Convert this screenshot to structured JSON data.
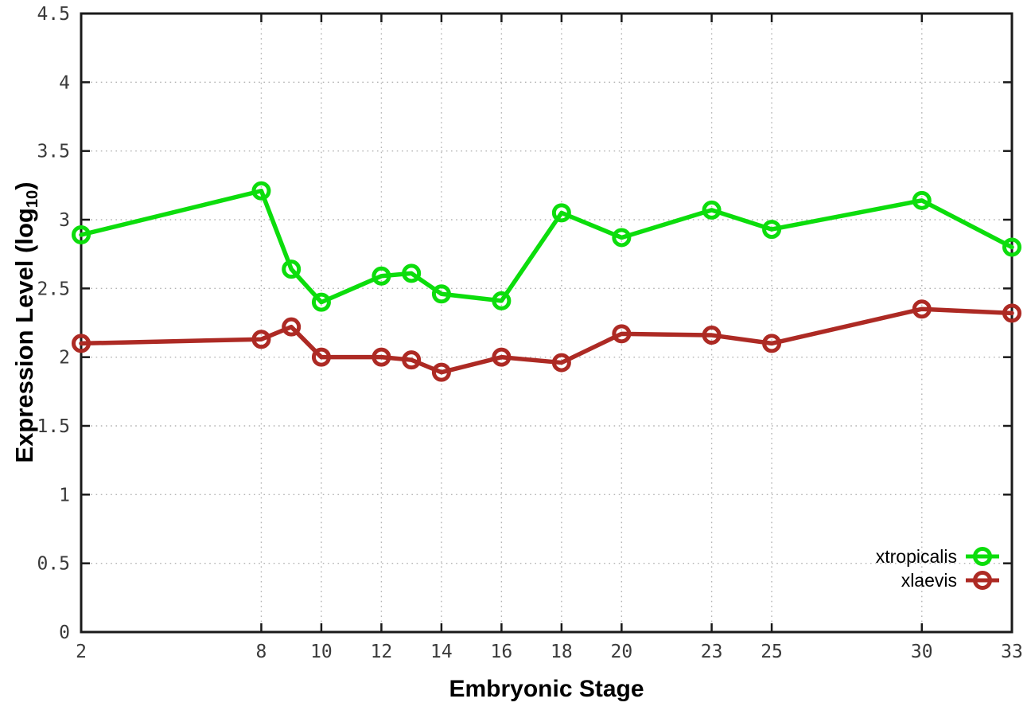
{
  "figure": {
    "xlabel": "Embryonic Stage",
    "ylabel_prefix": "Expression Level (log",
    "ylabel_sub": "10",
    "ylabel_suffix": ")"
  },
  "legend": {
    "items": [
      {
        "label": "xtropicalis"
      },
      {
        "label": "xlaevis"
      }
    ]
  },
  "chart_data": {
    "type": "line",
    "title": "",
    "xlabel": "Embryonic Stage",
    "ylabel": "Expression Level (log10)",
    "xlim": [
      2,
      33
    ],
    "ylim": [
      0,
      4.5
    ],
    "grid": true,
    "legend_position": "inside bottom-right",
    "x": [
      2,
      8,
      9,
      10,
      12,
      13,
      14,
      16,
      18,
      20,
      23,
      25,
      30,
      33
    ],
    "x_ticks": [
      2,
      8,
      10,
      12,
      14,
      16,
      18,
      20,
      23,
      25,
      30,
      33
    ],
    "x_tick_labels": [
      "2",
      "8",
      "10",
      "12",
      "14",
      "16",
      "18",
      "20",
      "23",
      "25",
      "30",
      "33"
    ],
    "y_ticks": [
      0,
      0.5,
      1,
      1.5,
      2,
      2.5,
      3,
      3.5,
      4,
      4.5
    ],
    "y_tick_labels": [
      "0",
      "0.5",
      "1",
      "1.5",
      "2",
      "2.5",
      "3",
      "3.5",
      "4",
      "4.5"
    ],
    "series": [
      {
        "name": "xtropicalis",
        "color": "#0cdd0c",
        "marker": "open-circle",
        "values": [
          2.89,
          3.21,
          2.64,
          2.4,
          2.59,
          2.61,
          2.46,
          2.41,
          3.05,
          2.87,
          3.07,
          2.93,
          3.14,
          2.8
        ]
      },
      {
        "name": "xlaevis",
        "color": "#ad2a24",
        "marker": "open-circle",
        "values": [
          2.1,
          2.13,
          2.22,
          2.0,
          2.0,
          1.98,
          1.89,
          2.0,
          1.96,
          2.17,
          2.16,
          2.1,
          2.35,
          2.32
        ]
      }
    ],
    "colors": {
      "border": "#1a1a1a",
      "grid": "#b3b3b3",
      "tick_text": "#3a3a3a"
    }
  }
}
